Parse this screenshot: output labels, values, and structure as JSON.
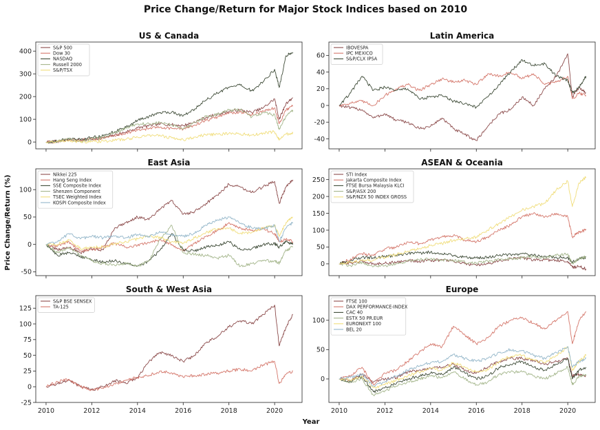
{
  "figure": {
    "title": "Price Change/Return for Major Stock Indices based on 2010",
    "xlabel": "Year",
    "ylabel": "Price Change/Return (%)"
  },
  "chart_data": [
    {
      "type": "line",
      "title": "US & Canada",
      "xlim": [
        2009.55,
        2021.2
      ],
      "ylim": [
        -30,
        440
      ],
      "yticks": [
        0,
        100,
        200,
        300,
        400
      ],
      "xticks": [
        2010,
        2012,
        2014,
        2016,
        2018,
        2020
      ],
      "show_xtick_labels": false,
      "legend": "top-left",
      "x": [
        2010,
        2010.5,
        2011,
        2011.5,
        2012,
        2012.5,
        2013,
        2013.5,
        2014,
        2014.5,
        2015,
        2015.5,
        2016,
        2016.5,
        2017,
        2017.5,
        2018,
        2018.5,
        2019,
        2019.5,
        2020,
        2020.2,
        2020.5,
        2020.8
      ],
      "series": [
        {
          "name": "S&P 500",
          "color": "#8b4a4a",
          "values": [
            0,
            2,
            10,
            8,
            12,
            18,
            30,
            45,
            62,
            72,
            80,
            76,
            72,
            88,
            108,
            122,
            135,
            140,
            130,
            150,
            190,
            100,
            170,
            195
          ]
        },
        {
          "name": "Dow 30",
          "color": "#d4766a",
          "values": [
            0,
            2,
            9,
            8,
            13,
            17,
            28,
            40,
            52,
            60,
            66,
            60,
            58,
            75,
            95,
            110,
            128,
            132,
            120,
            135,
            150,
            80,
            140,
            160
          ]
        },
        {
          "name": "NASDAQ",
          "color": "#3d4a36",
          "values": [
            0,
            4,
            14,
            10,
            20,
            28,
            45,
            65,
            95,
            112,
            130,
            132,
            115,
            145,
            185,
            215,
            240,
            250,
            225,
            265,
            320,
            240,
            380,
            395
          ]
        },
        {
          "name": "Russell 2000",
          "color": "#a3b58a",
          "values": [
            0,
            4,
            14,
            2,
            14,
            20,
            40,
            62,
            80,
            80,
            85,
            75,
            55,
            85,
            112,
            122,
            140,
            142,
            110,
            130,
            120,
            55,
            115,
            140
          ]
        },
        {
          "name": "S&P/TSX",
          "color": "#f0dd7a",
          "values": [
            0,
            2,
            8,
            0,
            2,
            4,
            8,
            12,
            22,
            30,
            28,
            18,
            10,
            22,
            32,
            34,
            38,
            36,
            30,
            40,
            45,
            8,
            35,
            38
          ]
        }
      ]
    },
    {
      "type": "line",
      "title": "Latin America",
      "xlim": [
        2009.55,
        2021.2
      ],
      "ylim": [
        -52,
        76
      ],
      "yticks": [
        -40,
        -20,
        0,
        20,
        40,
        60
      ],
      "xticks": [
        2010,
        2012,
        2014,
        2016,
        2018,
        2020
      ],
      "show_xtick_labels": false,
      "legend": "top-left",
      "x": [
        2010,
        2010.5,
        2011,
        2011.5,
        2012,
        2012.5,
        2013,
        2013.5,
        2014,
        2014.5,
        2015,
        2015.5,
        2016,
        2016.5,
        2017,
        2017.5,
        2018,
        2018.5,
        2019,
        2019.5,
        2020,
        2020.2,
        2020.5,
        2020.8
      ],
      "series": [
        {
          "name": "IBOVESPA",
          "color": "#8b4a4a",
          "values": [
            0,
            -3,
            -5,
            -15,
            -10,
            -18,
            -20,
            -28,
            -25,
            -15,
            -28,
            -35,
            -42,
            -25,
            -10,
            -5,
            10,
            0,
            20,
            35,
            62,
            10,
            22,
            15
          ]
        },
        {
          "name": "IPC MEXICO",
          "color": "#d4766a",
          "values": [
            0,
            3,
            5,
            0,
            12,
            20,
            25,
            18,
            25,
            32,
            28,
            30,
            25,
            38,
            35,
            40,
            32,
            38,
            25,
            28,
            35,
            8,
            15,
            12
          ]
        },
        {
          "name": "S&P/CLX IPSA",
          "color": "#3d4a36",
          "values": [
            0,
            15,
            35,
            18,
            22,
            18,
            20,
            8,
            10,
            12,
            5,
            2,
            -2,
            10,
            25,
            40,
            55,
            48,
            50,
            35,
            30,
            15,
            22,
            35
          ]
        }
      ]
    },
    {
      "type": "line",
      "title": "East Asia",
      "xlim": [
        2009.55,
        2021.2
      ],
      "ylim": [
        -57,
        138
      ],
      "yticks": [
        -50,
        0,
        50,
        100
      ],
      "xticks": [
        2010,
        2012,
        2014,
        2016,
        2018,
        2020
      ],
      "show_xtick_labels": false,
      "legend": "top-left",
      "x": [
        2010,
        2010.5,
        2011,
        2011.5,
        2012,
        2012.5,
        2013,
        2013.5,
        2014,
        2014.5,
        2015,
        2015.5,
        2016,
        2016.5,
        2017,
        2017.5,
        2018,
        2018.5,
        2019,
        2019.5,
        2020,
        2020.2,
        2020.5,
        2020.8
      ],
      "series": [
        {
          "name": "Nikkei 225",
          "color": "#8b4a4a",
          "values": [
            0,
            -10,
            -5,
            -15,
            -8,
            -10,
            30,
            40,
            50,
            45,
            65,
            80,
            55,
            60,
            75,
            90,
            110,
            105,
            95,
            105,
            115,
            75,
            105,
            118
          ]
        },
        {
          "name": "Hang Seng Index",
          "color": "#d4766a",
          "values": [
            0,
            -3,
            5,
            -12,
            -10,
            -5,
            2,
            -5,
            -2,
            3,
            10,
            0,
            -12,
            2,
            15,
            25,
            40,
            30,
            25,
            28,
            20,
            5,
            10,
            5
          ]
        },
        {
          "name": "SSE Composite Index",
          "color": "#3d4a36",
          "values": [
            0,
            -20,
            -15,
            -22,
            -28,
            -32,
            -30,
            -35,
            -40,
            -30,
            -10,
            20,
            -10,
            -12,
            -5,
            -2,
            5,
            -10,
            -8,
            0,
            2,
            -5,
            5,
            0
          ]
        },
        {
          "name": "Shenzen Component",
          "color": "#a3b58a",
          "values": [
            0,
            -15,
            -5,
            -20,
            -30,
            -35,
            -38,
            -35,
            -40,
            -30,
            10,
            35,
            -15,
            -18,
            -20,
            -25,
            -20,
            -40,
            -35,
            -30,
            -30,
            -35,
            -10,
            -5
          ]
        },
        {
          "name": "TSEC Weighted Index",
          "color": "#f0dd7a",
          "values": [
            0,
            0,
            8,
            -8,
            -5,
            -5,
            2,
            5,
            10,
            15,
            12,
            5,
            2,
            12,
            22,
            28,
            30,
            20,
            22,
            30,
            35,
            15,
            40,
            50
          ]
        },
        {
          "name": "KOSPI Composite Index",
          "color": "#93b6c9",
          "values": [
            0,
            5,
            20,
            10,
            15,
            12,
            15,
            12,
            18,
            15,
            22,
            18,
            15,
            20,
            35,
            45,
            50,
            38,
            30,
            28,
            35,
            5,
            30,
            40
          ]
        }
      ]
    },
    {
      "type": "line",
      "title": "ASEAN & Oceania",
      "xlim": [
        2009.55,
        2021.2
      ],
      "ylim": [
        -35,
        282
      ],
      "yticks": [
        0,
        50,
        100,
        150,
        200,
        250
      ],
      "xticks": [
        2010,
        2012,
        2014,
        2016,
        2018,
        2020
      ],
      "show_xtick_labels": false,
      "legend": "top-left",
      "x": [
        2010,
        2010.5,
        2011,
        2011.5,
        2012,
        2012.5,
        2013,
        2013.5,
        2014,
        2014.5,
        2015,
        2015.5,
        2016,
        2016.5,
        2017,
        2017.5,
        2018,
        2018.5,
        2019,
        2019.5,
        2020,
        2020.2,
        2020.5,
        2020.8
      ],
      "series": [
        {
          "name": "STI Index",
          "color": "#8b4a4a",
          "values": [
            0,
            3,
            8,
            0,
            2,
            5,
            10,
            8,
            10,
            12,
            8,
            0,
            -5,
            0,
            10,
            15,
            18,
            12,
            12,
            10,
            8,
            -10,
            -8,
            -15
          ]
        },
        {
          "name": "Jakarta Composite Index",
          "color": "#d4766a",
          "values": [
            0,
            15,
            30,
            25,
            45,
            50,
            65,
            60,
            70,
            80,
            85,
            70,
            65,
            80,
            100,
            115,
            140,
            150,
            140,
            150,
            140,
            80,
            95,
            100
          ]
        },
        {
          "name": "FTSE Bursa Malaysia KLCI",
          "color": "#3d4a36",
          "values": [
            0,
            10,
            20,
            18,
            22,
            25,
            30,
            32,
            35,
            30,
            25,
            20,
            18,
            20,
            25,
            28,
            30,
            25,
            22,
            20,
            18,
            5,
            15,
            20
          ]
        },
        {
          "name": "S&P/ASX 200",
          "color": "#a3b58a",
          "values": [
            0,
            -5,
            5,
            -8,
            -5,
            0,
            8,
            12,
            15,
            12,
            10,
            5,
            2,
            8,
            12,
            15,
            18,
            22,
            18,
            25,
            30,
            0,
            15,
            20
          ]
        },
        {
          "name": "S&P/NZX 50 INDEX GROSS",
          "color": "#f0dd7a",
          "values": [
            0,
            5,
            10,
            12,
            20,
            28,
            38,
            45,
            55,
            60,
            70,
            75,
            80,
            100,
            120,
            140,
            160,
            170,
            180,
            220,
            245,
            170,
            240,
            258
          ]
        }
      ]
    },
    {
      "type": "line",
      "title": "South & West Asia",
      "xlim": [
        2009.55,
        2021.2
      ],
      "ylim": [
        -25,
        145
      ],
      "yticks": [
        -25,
        0,
        25,
        50,
        75,
        100,
        125
      ],
      "xticks": [
        2010,
        2012,
        2014,
        2016,
        2018,
        2020
      ],
      "show_xtick_labels": true,
      "legend": "top-left",
      "x": [
        2010,
        2010.5,
        2011,
        2011.5,
        2012,
        2012.5,
        2013,
        2013.5,
        2014,
        2014.5,
        2015,
        2015.5,
        2016,
        2016.5,
        2017,
        2017.5,
        2018,
        2018.5,
        2019,
        2019.5,
        2020,
        2020.2,
        2020.5,
        2020.8
      ],
      "series": [
        {
          "name": "S&P BSE SENSEX",
          "color": "#8b4a4a",
          "values": [
            0,
            5,
            10,
            0,
            -5,
            0,
            10,
            5,
            15,
            40,
            55,
            50,
            40,
            50,
            70,
            80,
            95,
            105,
            100,
            115,
            130,
            65,
            95,
            115
          ]
        },
        {
          "name": "TA-125",
          "color": "#d4766a",
          "values": [
            0,
            8,
            12,
            0,
            -5,
            -3,
            5,
            10,
            15,
            18,
            25,
            22,
            15,
            18,
            20,
            22,
            25,
            28,
            25,
            35,
            40,
            5,
            20,
            25
          ]
        }
      ]
    },
    {
      "type": "line",
      "title": "Europe",
      "xlim": [
        2009.55,
        2021.2
      ],
      "ylim": [
        -40,
        142
      ],
      "yticks": [
        0,
        50,
        100
      ],
      "xticks": [
        2010,
        2012,
        2014,
        2016,
        2018,
        2020
      ],
      "show_xtick_labels": true,
      "legend": "top-left",
      "x": [
        2010,
        2010.5,
        2011,
        2011.5,
        2012,
        2012.5,
        2013,
        2013.5,
        2014,
        2014.5,
        2015,
        2015.5,
        2016,
        2016.5,
        2017,
        2017.5,
        2018,
        2018.5,
        2019,
        2019.5,
        2020,
        2020.2,
        2020.5,
        2020.8
      ],
      "series": [
        {
          "name": "FTSE 100",
          "color": "#8b4a4a",
          "values": [
            0,
            -2,
            8,
            -5,
            0,
            2,
            12,
            15,
            18,
            20,
            25,
            15,
            10,
            20,
            30,
            35,
            35,
            32,
            25,
            30,
            35,
            5,
            8,
            5
          ]
        },
        {
          "name": "DAX PERFORMANCE-INDEX",
          "color": "#d4766a",
          "values": [
            0,
            5,
            20,
            -10,
            10,
            15,
            30,
            45,
            60,
            55,
            90,
            75,
            60,
            70,
            90,
            100,
            105,
            95,
            85,
            100,
            115,
            60,
            100,
            115
          ]
        },
        {
          "name": "CAC 40",
          "color": "#3d4a36",
          "values": [
            0,
            -5,
            5,
            -22,
            -15,
            -8,
            0,
            5,
            10,
            8,
            20,
            10,
            0,
            5,
            20,
            25,
            30,
            20,
            15,
            25,
            35,
            0,
            15,
            20
          ]
        },
        {
          "name": "ESTX 50 PR.EUR",
          "color": "#a3b58a",
          "values": [
            0,
            -5,
            0,
            -28,
            -20,
            -12,
            -5,
            0,
            5,
            2,
            12,
            0,
            -10,
            -5,
            8,
            12,
            12,
            5,
            0,
            10,
            20,
            -10,
            5,
            8
          ]
        },
        {
          "name": "EURONEXT 100",
          "color": "#f0dd7a",
          "values": [
            0,
            -2,
            5,
            -15,
            -10,
            -2,
            5,
            12,
            18,
            15,
            28,
            20,
            12,
            15,
            30,
            38,
            40,
            32,
            28,
            40,
            55,
            15,
            30,
            40
          ]
        },
        {
          "name": "BEL 20",
          "color": "#93b6c9",
          "values": [
            0,
            3,
            8,
            -12,
            -5,
            5,
            15,
            22,
            28,
            30,
            42,
            35,
            30,
            35,
            45,
            50,
            48,
            40,
            35,
            45,
            55,
            20,
            30,
            35
          ]
        }
      ]
    }
  ]
}
